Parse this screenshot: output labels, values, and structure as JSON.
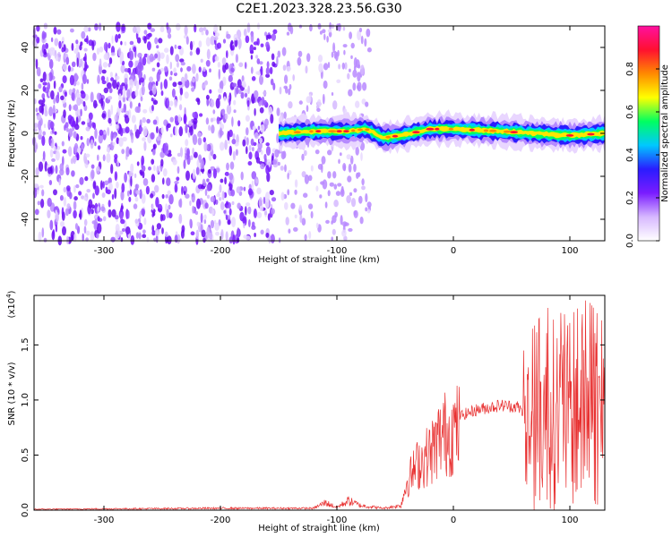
{
  "figure": {
    "title": "C2E1.2023.328.23.56.G30"
  },
  "chart_data": [
    {
      "type": "heatmap",
      "title": "C2E1.2023.328.23.56.G30",
      "xlabel": "Height of straight line (km)",
      "ylabel": "Frequency (Hz)",
      "xlim": [
        -360,
        130
      ],
      "ylim": [
        -50,
        50
      ],
      "xticks": [
        -300,
        -200,
        -100,
        0,
        100
      ],
      "yticks": [
        -40,
        -20,
        0,
        20,
        40
      ],
      "xtick_labels": [
        "-300",
        "-200",
        "-100",
        "0",
        "100"
      ],
      "ytick_labels": [
        "-40",
        "-20",
        "0",
        "20",
        "40"
      ],
      "colorbar": {
        "label": "Normalized spectral amplitude",
        "range": [
          0.0,
          1.0
        ],
        "ticks": [
          0.0,
          0.2,
          0.4,
          0.6,
          0.8
        ],
        "tick_labels": [
          "0.0",
          "0.2",
          "0.4",
          "0.6",
          "0.8"
        ],
        "colors": [
          "#ffffff",
          "#d7b8ff",
          "#7a1cff",
          "#2a1cff",
          "#00c8ff",
          "#00ff60",
          "#ffff00",
          "#ff8a00",
          "#ff1030",
          "#ff10a0"
        ]
      },
      "noise_region_x": [
        -360,
        -72
      ],
      "signal_region_x": [
        -150,
        130
      ],
      "signal_ridge": [
        {
          "x": -150,
          "y": 0
        },
        {
          "x": -120,
          "y": 1
        },
        {
          "x": -90,
          "y": 1
        },
        {
          "x": -75,
          "y": 2
        },
        {
          "x": -60,
          "y": -2
        },
        {
          "x": -45,
          "y": -1
        },
        {
          "x": -20,
          "y": 2
        },
        {
          "x": 0,
          "y": 2
        },
        {
          "x": 40,
          "y": 1
        },
        {
          "x": 70,
          "y": 0
        },
        {
          "x": 100,
          "y": -1
        },
        {
          "x": 130,
          "y": 0
        }
      ]
    },
    {
      "type": "line",
      "xlabel": "Height of straight line (km)",
      "ylabel": "SNR (10 * v/v)",
      "y_multiplier_label": "(x10^4)",
      "y_multiplier_base": "(x10",
      "y_multiplier_exp": "4",
      "y_multiplier_close": ")",
      "xlim": [
        -360,
        130
      ],
      "ylim": [
        0,
        1.95
      ],
      "xticks": [
        -300,
        -200,
        -100,
        0,
        100
      ],
      "yticks": [
        0.0,
        0.5,
        1.0,
        1.5
      ],
      "xtick_labels": [
        "-300",
        "-200",
        "-100",
        "0",
        "100"
      ],
      "ytick_labels": [
        "0.0",
        "0.5",
        "1.0",
        "1.5"
      ],
      "series": [
        {
          "name": "SNR",
          "color": "#e83030",
          "envelope": [
            {
              "x": -360,
              "y": 0.01
            },
            {
              "x": -200,
              "y": 0.02
            },
            {
              "x": -120,
              "y": 0.02
            },
            {
              "x": -110,
              "y": 0.08
            },
            {
              "x": -100,
              "y": 0.03
            },
            {
              "x": -90,
              "y": 0.1
            },
            {
              "x": -80,
              "y": 0.05
            },
            {
              "x": -60,
              "y": 0.02
            },
            {
              "x": -45,
              "y": 0.05
            },
            {
              "x": -40,
              "y": 0.3
            },
            {
              "x": -30,
              "y": 0.5
            },
            {
              "x": -20,
              "y": 0.6
            },
            {
              "x": -10,
              "y": 0.8
            },
            {
              "x": 0,
              "y": 0.85
            },
            {
              "x": 20,
              "y": 0.93
            },
            {
              "x": 40,
              "y": 0.97
            },
            {
              "x": 55,
              "y": 0.96
            },
            {
              "x": 60,
              "y": 0.9
            },
            {
              "x": 65,
              "y": 1.0
            },
            {
              "x": 80,
              "y": 1.15
            },
            {
              "x": 100,
              "y": 1.1
            },
            {
              "x": 115,
              "y": 1.2
            },
            {
              "x": 130,
              "y": 1.05
            }
          ]
        }
      ]
    }
  ]
}
